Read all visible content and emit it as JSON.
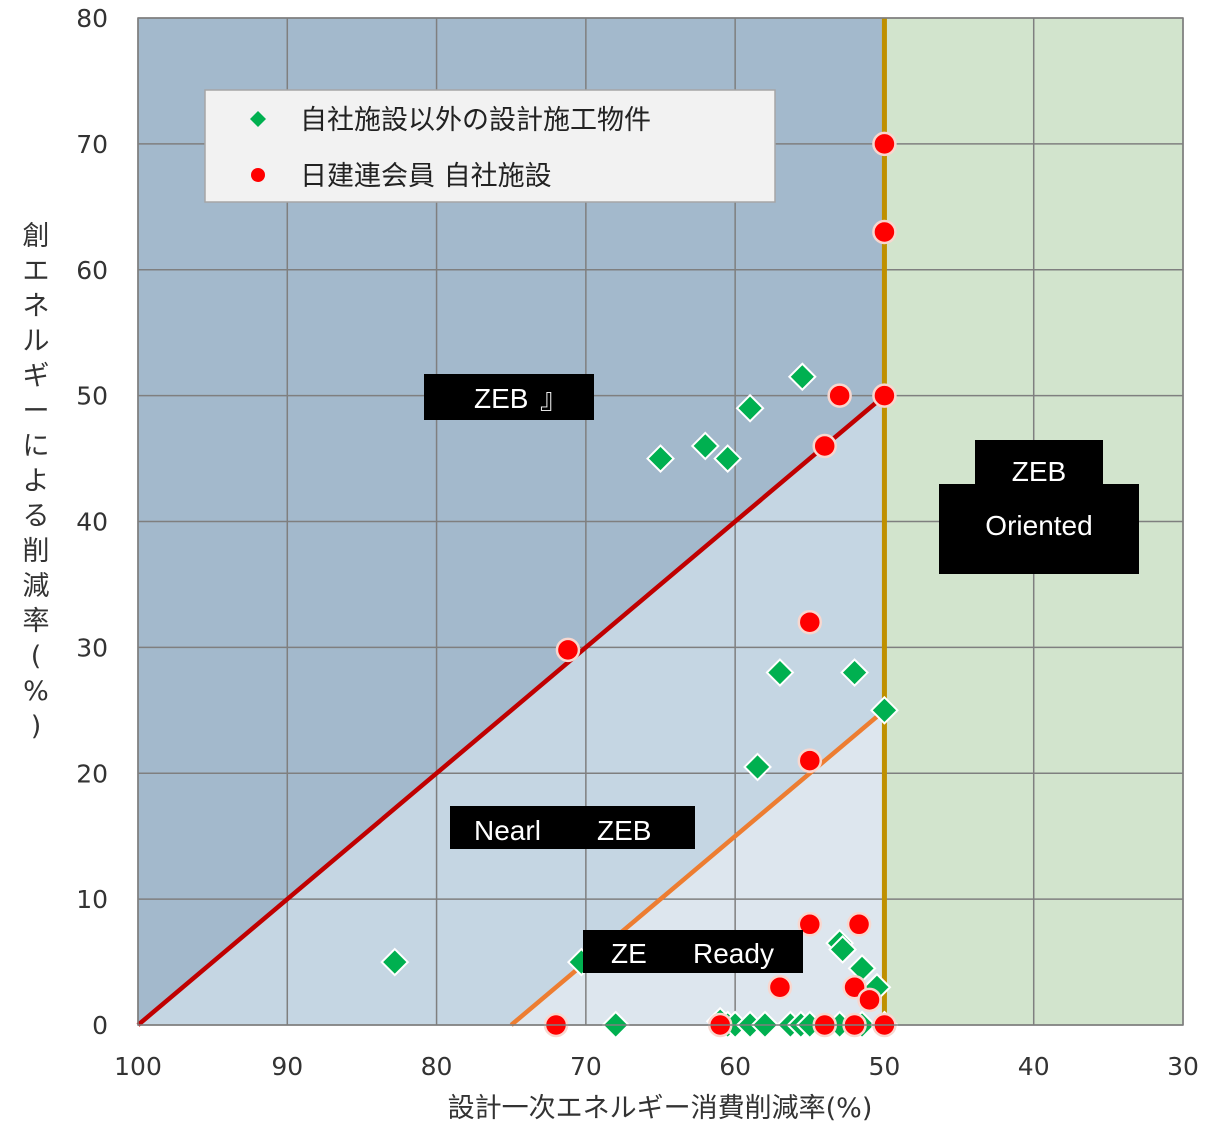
{
  "chart_data": {
    "type": "scatter",
    "xlabel": "設計一次エネルギー消費削減率(%)",
    "ylabel": "創エネルギーによる削減率(%)",
    "xlim": [
      100,
      30
    ],
    "ylim": [
      0,
      80
    ],
    "x_ticks": [
      "100",
      "90",
      "80",
      "70",
      "60",
      "50",
      "40",
      "30"
    ],
    "y_ticks": [
      "0",
      "10",
      "20",
      "30",
      "40",
      "50",
      "60",
      "70",
      "80"
    ],
    "grid": true,
    "legend_position": "top-left",
    "zones": [
      {
        "label": "ZEB",
        "label_tail": "』"
      },
      {
        "label": "Nearl",
        "label_tail": "ZEB"
      },
      {
        "label": "ZE",
        "label_tail": "Ready"
      },
      {
        "label": "ZEB",
        "label_tail": "Oriented"
      }
    ],
    "colors": {
      "zeb_region": "#a3b9cc",
      "nearly_region": "#c5d6e3",
      "ready_region": "#dde6ee",
      "oriented_region": "#d2e4cd",
      "zeb_line": "#c00000",
      "ready_line": "#ed7d31",
      "boundary_line": "#bf9000",
      "gridline": "#7f7f7f"
    },
    "series": [
      {
        "name": "自社施設以外の設計施工物件",
        "marker": "diamond",
        "color": "#00b050",
        "points": [
          [
            82.8,
            5
          ],
          [
            70.3,
            5
          ],
          [
            68,
            0
          ],
          [
            65,
            45
          ],
          [
            62,
            46
          ],
          [
            60.5,
            45
          ],
          [
            59,
            49
          ],
          [
            58.5,
            20.5
          ],
          [
            57,
            28
          ],
          [
            55.5,
            51.5
          ],
          [
            52,
            28
          ],
          [
            50,
            25
          ],
          [
            53,
            6.5
          ],
          [
            52.8,
            6
          ],
          [
            51.5,
            4.5
          ],
          [
            50.5,
            3
          ],
          [
            61,
            0.3
          ],
          [
            60.5,
            0
          ],
          [
            60,
            0
          ],
          [
            59,
            0
          ],
          [
            58,
            0
          ],
          [
            56.3,
            0
          ],
          [
            55.6,
            0
          ],
          [
            55,
            0
          ],
          [
            53,
            0
          ],
          [
            51.5,
            0
          ],
          [
            50,
            0
          ]
        ]
      },
      {
        "name": "日建連会員 自社施設",
        "marker": "circle",
        "color": "#ff0000",
        "points": [
          [
            50,
            70
          ],
          [
            50,
            63
          ],
          [
            50,
            50
          ],
          [
            53,
            50
          ],
          [
            54,
            46
          ],
          [
            71.2,
            29.8
          ],
          [
            55,
            32
          ],
          [
            55,
            21
          ],
          [
            55,
            8
          ],
          [
            51.7,
            8
          ],
          [
            57,
            3
          ],
          [
            52,
            3
          ],
          [
            51,
            2
          ],
          [
            72,
            0
          ],
          [
            61,
            0
          ],
          [
            54,
            0
          ],
          [
            52,
            0
          ],
          [
            50,
            0
          ]
        ]
      }
    ]
  }
}
